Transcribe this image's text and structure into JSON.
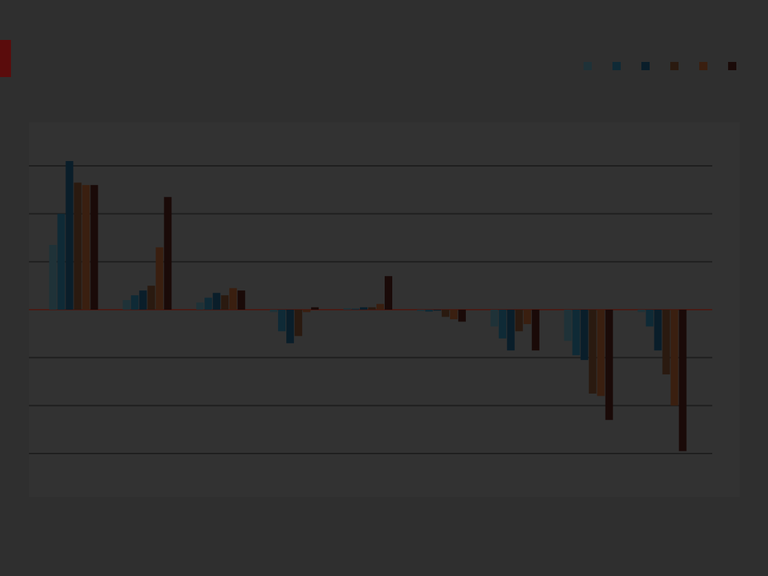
{
  "header": {
    "title": "",
    "subtitle": ""
  },
  "footer": {
    "left": "",
    "right": ""
  },
  "colors": {
    "background": "#2f2f2f",
    "plot_background": "#323232",
    "grid": "#1e1e1e",
    "text": "#f4f4f4",
    "accent": "#5a0c0c"
  },
  "chart_data": {
    "type": "bar",
    "title": "",
    "categories": [
      "",
      "",
      "",
      "",
      "",
      "",
      "",
      "",
      ""
    ],
    "series": [
      {
        "name": "",
        "color": "#1f3238"
      },
      {
        "name": "",
        "color": "#0f2a36"
      },
      {
        "name": "",
        "color": "#0a1e2a"
      },
      {
        "name": "",
        "color": "#2a1a10"
      },
      {
        "name": "",
        "color": "#3a1f10"
      },
      {
        "name": "",
        "color": "#1a0a08"
      }
    ],
    "values": [
      [
        13.5,
        20.0,
        31.0,
        26.5,
        26.0,
        26.0
      ],
      [
        2.0,
        3.0,
        4.0,
        5.0,
        13.0,
        23.5
      ],
      [
        1.5,
        2.5,
        3.5,
        3.0,
        4.5,
        4.0
      ],
      [
        -0.5,
        -4.5,
        -7.0,
        -5.5,
        -0.5,
        0.5
      ],
      [
        0.3,
        0.2,
        0.5,
        0.5,
        1.2,
        7.0
      ],
      [
        -0.3,
        -0.4,
        -0.2,
        -1.5,
        -2.0,
        -2.5
      ],
      [
        -3.5,
        -6.0,
        -8.5,
        -4.5,
        -3.0,
        -8.5
      ],
      [
        -6.5,
        -9.5,
        -10.5,
        -17.5,
        -18.0,
        -23.0
      ],
      [
        -0.5,
        -3.5,
        -8.5,
        -13.5,
        -20.0,
        -29.5
      ]
    ],
    "ylim": [
      -40,
      40
    ],
    "yticks": [
      30,
      20,
      10,
      0,
      -10,
      -20,
      -30
    ],
    "ytick_labels": [
      "",
      "",
      "",
      "",
      "",
      "",
      ""
    ],
    "grid": true,
    "legend": "top-right",
    "xlabel": "",
    "ylabel": ""
  }
}
